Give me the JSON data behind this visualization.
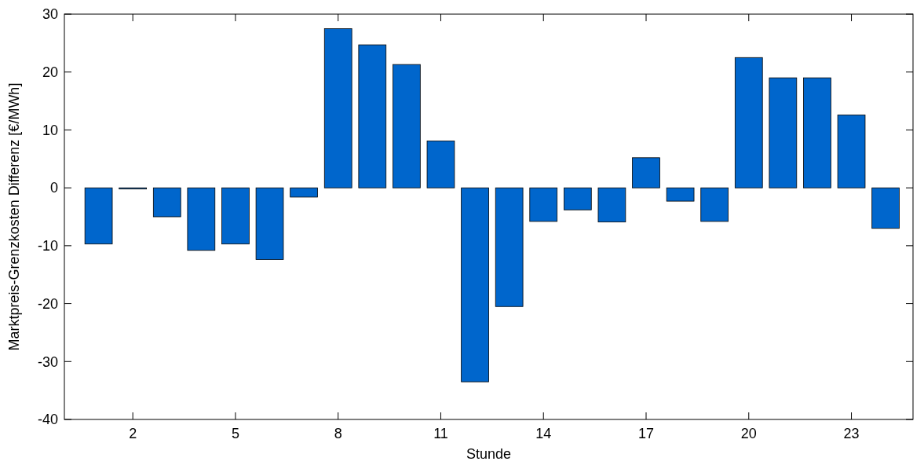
{
  "chart_data": {
    "type": "bar",
    "xlabel": "Stunde",
    "ylabel": "Marktpreis-Grenzkosten Differenz [€/MWh]",
    "x": [
      1,
      2,
      3,
      4,
      5,
      6,
      7,
      8,
      9,
      10,
      11,
      12,
      13,
      14,
      15,
      16,
      17,
      18,
      19,
      20,
      21,
      22,
      23,
      24
    ],
    "values": [
      -9.7,
      -0.2,
      -5.0,
      -10.8,
      -9.7,
      -12.4,
      -1.6,
      27.5,
      24.7,
      21.3,
      8.1,
      -33.5,
      -20.5,
      -5.8,
      -3.8,
      -5.9,
      5.2,
      -2.3,
      -5.8,
      22.5,
      19.0,
      19.0,
      12.6,
      -7.0
    ],
    "color": "#0066cc",
    "xlim": [
      0,
      24.8
    ],
    "xticks": [
      2,
      5,
      8,
      11,
      14,
      17,
      20,
      23
    ],
    "ylim": [
      -40,
      30
    ],
    "yticks": [
      -40,
      -30,
      -20,
      -10,
      0,
      10,
      20,
      30
    ],
    "grid": false
  }
}
